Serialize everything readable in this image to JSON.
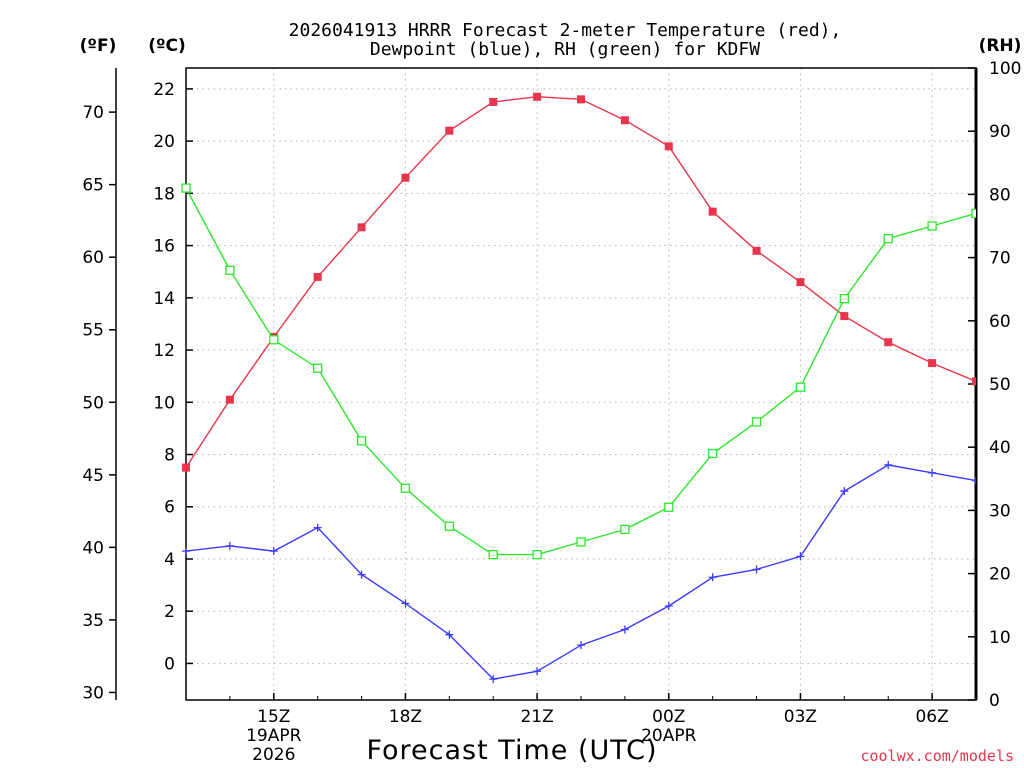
{
  "chart_data": {
    "type": "line",
    "title_line1": "2026041913 HRRR Forecast 2-meter Temperature (red),",
    "title_line2": "Dewpoint (blue), RH (green) for KDFW",
    "xlabel": "Forecast Time (UTC)",
    "credit": "coolwx.com/models",
    "unit_labels": {
      "fahrenheit": "(ºF)",
      "celsius": "(ºC)",
      "rh": "(RH)"
    },
    "x_hours": [
      13,
      14,
      15,
      16,
      17,
      18,
      19,
      20,
      21,
      22,
      23,
      24,
      25,
      26,
      27,
      28,
      29,
      30,
      31
    ],
    "x_range": [
      13,
      31
    ],
    "x_ticks": [
      {
        "hour": 15,
        "label": "15Z",
        "sub1": "19APR",
        "sub2": "2026"
      },
      {
        "hour": 18,
        "label": "18Z",
        "sub1": "",
        "sub2": ""
      },
      {
        "hour": 21,
        "label": "21Z",
        "sub1": "",
        "sub2": ""
      },
      {
        "hour": 24,
        "label": "00Z",
        "sub1": "20APR",
        "sub2": ""
      },
      {
        "hour": 27,
        "label": "03Z",
        "sub1": "",
        "sub2": ""
      },
      {
        "hour": 30,
        "label": "06Z",
        "sub1": "",
        "sub2": ""
      }
    ],
    "y_celsius_range": [
      -1.4,
      22.8
    ],
    "y_celsius_ticks": [
      "22",
      "20",
      "18",
      "16",
      "14",
      "12",
      "10",
      "8",
      "6",
      "4",
      "2",
      "0"
    ],
    "y_fahrenheit_ticks": [
      "70",
      "65",
      "60",
      "55",
      "50",
      "45",
      "40",
      "35",
      "30"
    ],
    "y_rh_range": [
      0,
      100
    ],
    "y_rh_ticks": [
      "100",
      "90",
      "80",
      "70",
      "60",
      "50",
      "40",
      "30",
      "20",
      "10",
      "0"
    ],
    "grid": true,
    "series": [
      {
        "name": "Temperature",
        "unit": "C",
        "color": "#e8344d",
        "marker": "filled-square",
        "values": [
          7.5,
          10.1,
          12.5,
          14.8,
          16.7,
          18.6,
          20.4,
          21.5,
          21.7,
          21.6,
          20.8,
          19.8,
          17.3,
          15.8,
          14.6,
          13.3,
          12.3,
          11.5,
          10.8
        ]
      },
      {
        "name": "Dewpoint",
        "unit": "C",
        "color": "#3b3bff",
        "marker": "plus",
        "values": [
          4.3,
          4.5,
          4.3,
          5.2,
          3.4,
          2.3,
          1.1,
          -0.6,
          -0.3,
          0.7,
          1.3,
          2.2,
          3.3,
          3.6,
          4.1,
          6.6,
          7.6,
          7.3,
          7.0
        ]
      },
      {
        "name": "RH",
        "unit": "%",
        "color": "#2ee62e",
        "marker": "open-square",
        "values": [
          81,
          68,
          57,
          52.5,
          41,
          33.5,
          27.5,
          23,
          23,
          25,
          27,
          30.5,
          39,
          44,
          49.5,
          63.5,
          73,
          75,
          77
        ]
      }
    ]
  }
}
